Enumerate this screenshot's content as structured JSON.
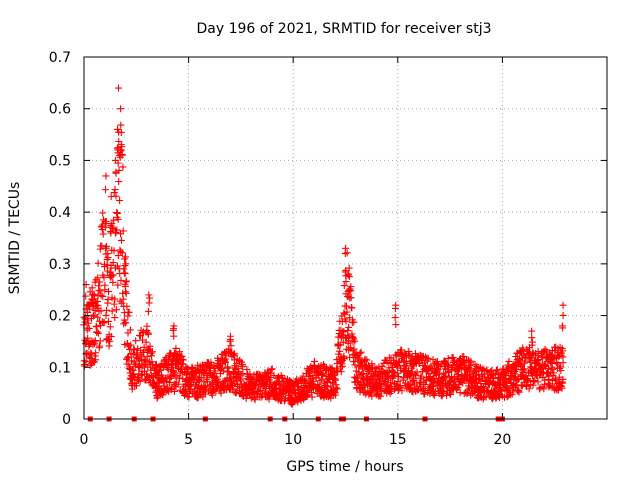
{
  "chart_data": {
    "type": "scatter",
    "title": "Day 196 of 2021, SRMTID for receiver stj3",
    "xlabel": "GPS time / hours",
    "ylabel": "SRMTID / TECUs",
    "xlim": [
      0,
      25
    ],
    "ylim": [
      0,
      0.7
    ],
    "xticks": [
      0,
      5,
      10,
      15,
      20
    ],
    "xtick_labels": [
      "0",
      "5",
      "10",
      "15",
      "20"
    ],
    "yticks": [
      0,
      0.1,
      0.2,
      0.3,
      0.4,
      0.5,
      0.6,
      0.7
    ],
    "ytick_labels": [
      "0",
      "0.1",
      "0.2",
      "0.3",
      "0.4",
      "0.5",
      "0.6",
      "0.7"
    ],
    "grid": true,
    "marker": "+",
    "color": "#ff0000",
    "envelope_description": "approximate typical SRMTID level vs hour; the plot shows a dense scatter of '+' markers around this envelope",
    "envelope": [
      {
        "x": 0.0,
        "y": 0.15
      },
      {
        "x": 0.3,
        "y": 0.18
      },
      {
        "x": 0.6,
        "y": 0.2
      },
      {
        "x": 0.9,
        "y": 0.3
      },
      {
        "x": 1.2,
        "y": 0.25
      },
      {
        "x": 1.5,
        "y": 0.35
      },
      {
        "x": 1.8,
        "y": 0.4
      },
      {
        "x": 2.0,
        "y": 0.2
      },
      {
        "x": 2.3,
        "y": 0.1
      },
      {
        "x": 2.6,
        "y": 0.12
      },
      {
        "x": 3.0,
        "y": 0.13
      },
      {
        "x": 3.5,
        "y": 0.07
      },
      {
        "x": 4.0,
        "y": 0.09
      },
      {
        "x": 4.5,
        "y": 0.1
      },
      {
        "x": 5.0,
        "y": 0.07
      },
      {
        "x": 6.0,
        "y": 0.08
      },
      {
        "x": 7.0,
        "y": 0.1
      },
      {
        "x": 8.0,
        "y": 0.06
      },
      {
        "x": 9.0,
        "y": 0.07
      },
      {
        "x": 10.0,
        "y": 0.05
      },
      {
        "x": 11.0,
        "y": 0.08
      },
      {
        "x": 12.0,
        "y": 0.07
      },
      {
        "x": 12.6,
        "y": 0.25
      },
      {
        "x": 13.0,
        "y": 0.1
      },
      {
        "x": 14.0,
        "y": 0.07
      },
      {
        "x": 15.0,
        "y": 0.1
      },
      {
        "x": 16.0,
        "y": 0.09
      },
      {
        "x": 17.0,
        "y": 0.08
      },
      {
        "x": 18.0,
        "y": 0.09
      },
      {
        "x": 19.0,
        "y": 0.07
      },
      {
        "x": 20.0,
        "y": 0.07
      },
      {
        "x": 21.0,
        "y": 0.1
      },
      {
        "x": 22.0,
        "y": 0.1
      },
      {
        "x": 22.9,
        "y": 0.1
      }
    ],
    "peaks": [
      {
        "x": 0.1,
        "y": 0.26
      },
      {
        "x": 0.4,
        "y": 0.24
      },
      {
        "x": 1.05,
        "y": 0.47
      },
      {
        "x": 1.3,
        "y": 0.43
      },
      {
        "x": 1.5,
        "y": 0.5
      },
      {
        "x": 1.6,
        "y": 0.56
      },
      {
        "x": 1.65,
        "y": 0.64
      },
      {
        "x": 1.75,
        "y": 0.6
      },
      {
        "x": 2.0,
        "y": 0.3
      },
      {
        "x": 3.1,
        "y": 0.24
      },
      {
        "x": 4.3,
        "y": 0.18
      },
      {
        "x": 7.0,
        "y": 0.16
      },
      {
        "x": 12.5,
        "y": 0.33
      },
      {
        "x": 12.65,
        "y": 0.28
      },
      {
        "x": 14.9,
        "y": 0.22
      },
      {
        "x": 21.4,
        "y": 0.17
      },
      {
        "x": 22.9,
        "y": 0.22
      }
    ],
    "zero_markers_x": [
      0.3,
      1.2,
      2.4,
      3.3,
      5.8,
      8.9,
      9.6,
      11.2,
      12.3,
      12.4,
      13.5,
      16.3,
      19.8,
      20.0
    ]
  }
}
